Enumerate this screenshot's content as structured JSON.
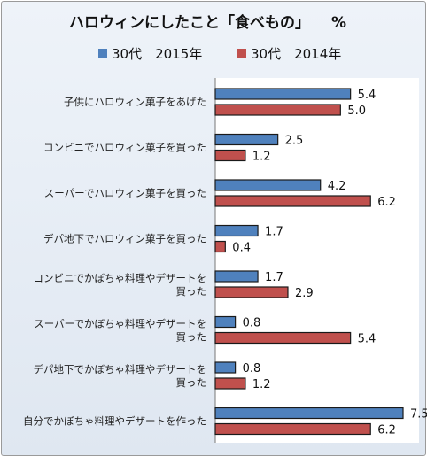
{
  "chart_data": {
    "type": "bar",
    "orientation": "horizontal",
    "title": "ハロウィンにしたこと「食べもの」",
    "unit": "%",
    "xlim": [
      0,
      7.5
    ],
    "grid": false,
    "legend_position": "top",
    "categories": [
      [
        "子供にハロウィン菓子をあげた"
      ],
      [
        "コンビニでハロウィン菓子を買った"
      ],
      [
        "スーパーでハロウィン菓子を買った"
      ],
      [
        "デパ地下でハロウィン菓子を買った"
      ],
      [
        "コンビニでかぼちゃ料理やデザートを",
        "買った"
      ],
      [
        "スーパーでかぼちゃ料理やデザートを",
        "買った"
      ],
      [
        "デパ地下でかぼちゃ料理やデザートを",
        "買った"
      ],
      [
        "自分でかぼちゃ料理やデザートを作った"
      ]
    ],
    "series": [
      {
        "name": "30代　2015年",
        "color": "#4f81bd",
        "values": [
          5.4,
          2.5,
          4.2,
          1.7,
          1.7,
          0.8,
          0.8,
          7.5
        ]
      },
      {
        "name": "30代　2014年",
        "color": "#c0504d",
        "values": [
          5.0,
          1.2,
          6.2,
          0.4,
          2.9,
          5.4,
          1.2,
          6.2
        ]
      }
    ]
  }
}
